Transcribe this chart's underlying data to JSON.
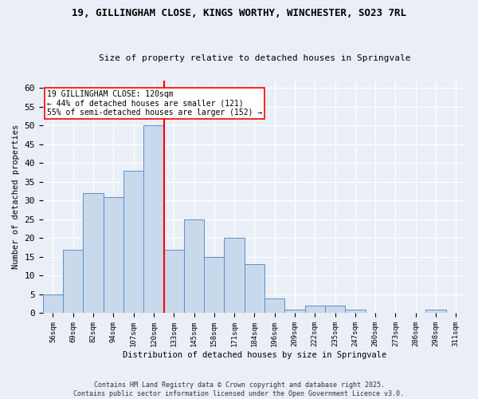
{
  "title1": "19, GILLINGHAM CLOSE, KINGS WORTHY, WINCHESTER, SO23 7RL",
  "title2": "Size of property relative to detached houses in Springvale",
  "xlabel": "Distribution of detached houses by size in Springvale",
  "ylabel": "Number of detached properties",
  "categories": [
    "56sqm",
    "69sqm",
    "82sqm",
    "94sqm",
    "107sqm",
    "120sqm",
    "133sqm",
    "145sqm",
    "158sqm",
    "171sqm",
    "184sqm",
    "196sqm",
    "209sqm",
    "222sqm",
    "235sqm",
    "247sqm",
    "260sqm",
    "273sqm",
    "286sqm",
    "298sqm",
    "311sqm"
  ],
  "values": [
    5,
    17,
    32,
    31,
    38,
    50,
    17,
    25,
    15,
    20,
    13,
    4,
    1,
    2,
    2,
    1,
    0,
    0,
    0,
    1,
    0
  ],
  "bar_color": "#c9d9ec",
  "bar_edge_color": "#5b8fc9",
  "vline_index": 5,
  "vline_color": "red",
  "annotation_text": "19 GILLINGHAM CLOSE: 120sqm\n← 44% of detached houses are smaller (121)\n55% of semi-detached houses are larger (152) →",
  "annotation_box_color": "white",
  "annotation_box_edge": "red",
  "ylim": [
    0,
    62
  ],
  "yticks": [
    0,
    5,
    10,
    15,
    20,
    25,
    30,
    35,
    40,
    45,
    50,
    55,
    60
  ],
  "background_color": "#eaeff7",
  "grid_color": "white",
  "footer1": "Contains HM Land Registry data © Crown copyright and database right 2025.",
  "footer2": "Contains public sector information licensed under the Open Government Licence v3.0."
}
